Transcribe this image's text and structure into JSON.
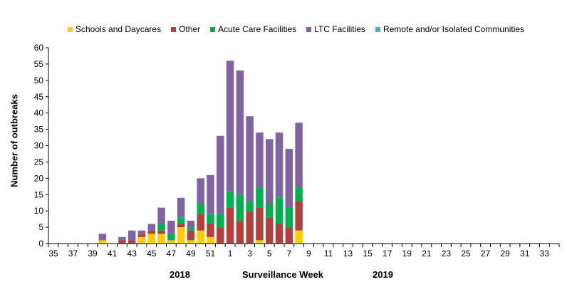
{
  "chart_data": {
    "type": "bar",
    "stacked": true,
    "xlabel": "Surveillance Week",
    "ylabel": "Number of outbreaks",
    "year_labels": [
      "2018",
      "2019"
    ],
    "ylim": [
      0,
      60
    ],
    "yticks": [
      0,
      5,
      10,
      15,
      20,
      25,
      30,
      35,
      40,
      45,
      50,
      55,
      60
    ],
    "categories": [
      "35",
      "36",
      "37",
      "38",
      "39",
      "40",
      "41",
      "42",
      "43",
      "44",
      "45",
      "46",
      "47",
      "48",
      "49",
      "50",
      "51",
      "52",
      "1",
      "2",
      "3",
      "4",
      "5",
      "6",
      "7",
      "8",
      "9",
      "10",
      "11",
      "12",
      "13",
      "14",
      "15",
      "16",
      "17",
      "18",
      "19",
      "20",
      "21",
      "22",
      "23",
      "24",
      "25",
      "26",
      "27",
      "28",
      "29",
      "30",
      "31",
      "32",
      "33",
      "34"
    ],
    "tick_labels": [
      "35",
      "37",
      "39",
      "41",
      "43",
      "45",
      "47",
      "49",
      "51",
      "1",
      "3",
      "5",
      "7",
      "9",
      "11",
      "13",
      "15",
      "17",
      "19",
      "21",
      "23",
      "25",
      "27",
      "29",
      "31",
      "33"
    ],
    "legend_position": "top",
    "grid": false,
    "series": [
      {
        "name": "Schools and Daycares",
        "color": "#FFCC00",
        "values": [
          0,
          0,
          0,
          0,
          0,
          1,
          0,
          0,
          0,
          2,
          3,
          3,
          1,
          5,
          1,
          4,
          2,
          0,
          0,
          0,
          0,
          1,
          0,
          0,
          0,
          4,
          0,
          0,
          0,
          0,
          0,
          0,
          0,
          0,
          0,
          0,
          0,
          0,
          0,
          0,
          0,
          0,
          0,
          0,
          0,
          0,
          0,
          0,
          0,
          0,
          0,
          0
        ]
      },
      {
        "name": "Other",
        "color": "#B0413E",
        "values": [
          0,
          0,
          0,
          0,
          0,
          0,
          0,
          1,
          1,
          1,
          1,
          1,
          0,
          1,
          3,
          5,
          4,
          5,
          11,
          7,
          10,
          10,
          8,
          6,
          5,
          9,
          0,
          0,
          0,
          0,
          0,
          0,
          0,
          0,
          0,
          0,
          0,
          0,
          0,
          0,
          0,
          0,
          0,
          0,
          0,
          0,
          0,
          0,
          0,
          0,
          0,
          0
        ]
      },
      {
        "name": "Acute Care Facilities",
        "color": "#00B050",
        "values": [
          0,
          0,
          0,
          0,
          0,
          0,
          0,
          0,
          0,
          0,
          0,
          2,
          2,
          2,
          1,
          3,
          3,
          4,
          5,
          8,
          3,
          6,
          4,
          8,
          6,
          4,
          0,
          0,
          0,
          0,
          0,
          0,
          0,
          0,
          0,
          0,
          0,
          0,
          0,
          0,
          0,
          0,
          0,
          0,
          0,
          0,
          0,
          0,
          0,
          0,
          0,
          0
        ]
      },
      {
        "name": "LTC Facilities",
        "color": "#8064A2",
        "values": [
          0,
          0,
          0,
          0,
          0,
          2,
          0,
          1,
          3,
          1,
          2,
          5,
          4,
          6,
          2,
          8,
          12,
          24,
          40,
          38,
          26,
          17,
          20,
          20,
          18,
          20,
          0,
          0,
          0,
          0,
          0,
          0,
          0,
          0,
          0,
          0,
          0,
          0,
          0,
          0,
          0,
          0,
          0,
          0,
          0,
          0,
          0,
          0,
          0,
          0,
          0,
          0
        ]
      },
      {
        "name": "Remote and/or Isolated Communities",
        "color": "#4BACC6",
        "values": [
          0,
          0,
          0,
          0,
          0,
          0,
          0,
          0,
          0,
          0,
          0,
          0,
          0,
          0,
          0,
          0,
          0,
          0,
          0,
          0,
          0,
          0,
          0,
          0,
          0,
          0,
          0,
          0,
          0,
          0,
          0,
          0,
          0,
          0,
          0,
          0,
          0,
          0,
          0,
          0,
          0,
          0,
          0,
          0,
          0,
          0,
          0,
          0,
          0,
          0,
          0,
          0
        ]
      }
    ]
  }
}
